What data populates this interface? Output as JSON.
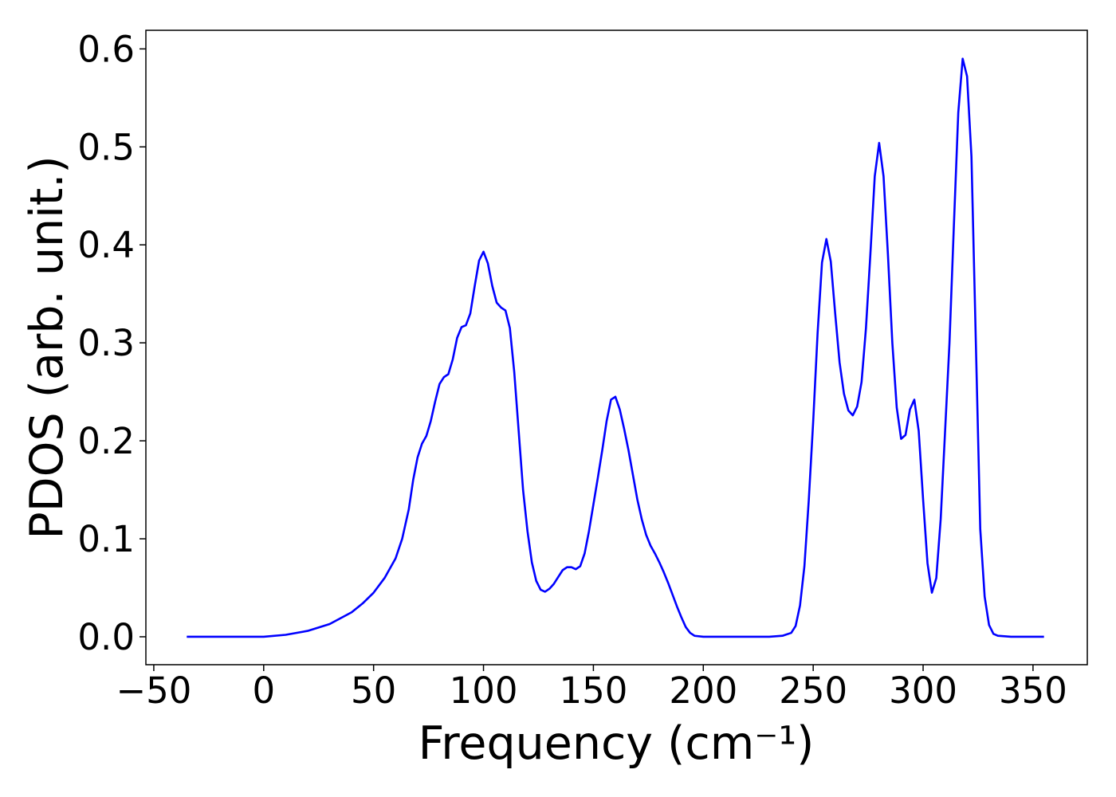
{
  "chart_data": {
    "type": "line",
    "xlabel": "Frequency (cm⁻¹)",
    "ylabel": "PDOS (arb. unit.)",
    "xlim": [
      -53.6,
      374.7
    ],
    "ylim": [
      -0.0285,
      0.619
    ],
    "xticks": [
      {
        "value": -50,
        "label": "−50"
      },
      0,
      50,
      100,
      150,
      200,
      250,
      300,
      350
    ],
    "yticks": [
      {
        "value": 0,
        "label": "0.0"
      },
      0.1,
      0.2,
      0.3,
      0.4,
      0.5,
      0.6
    ],
    "grid": false,
    "series": [
      {
        "color": "#0000ff",
        "x": [
          -35,
          0,
          10,
          20,
          30,
          40,
          45,
          50,
          55,
          60,
          63,
          66,
          68,
          70,
          72,
          74,
          76,
          78,
          80,
          82,
          84,
          86,
          88,
          90,
          92,
          94,
          96,
          98,
          100,
          102,
          104,
          106,
          108,
          110,
          112,
          114,
          116,
          118,
          120,
          122,
          124,
          126,
          128,
          130,
          132,
          134,
          136,
          138,
          140,
          142,
          144,
          146,
          148,
          150,
          152,
          154,
          156,
          158,
          160,
          162,
          164,
          166,
          168,
          170,
          172,
          174,
          176,
          178,
          180,
          182,
          184,
          186,
          188,
          190,
          192,
          194,
          196,
          200,
          230,
          236,
          240,
          242,
          244,
          246,
          248,
          250,
          252,
          254,
          256,
          258,
          260,
          262,
          264,
          266,
          268,
          270,
          272,
          274,
          276,
          278,
          280,
          282,
          284,
          286,
          288,
          290,
          292,
          294,
          296,
          298,
          300,
          302,
          304,
          306,
          308,
          310,
          312,
          314,
          316,
          318,
          320,
          322,
          324,
          326,
          328,
          330,
          332,
          334,
          340,
          355
        ],
        "values": [
          0,
          0,
          0.002,
          0.006,
          0.013,
          0.025,
          0.034,
          0.045,
          0.06,
          0.08,
          0.1,
          0.13,
          0.16,
          0.183,
          0.197,
          0.205,
          0.22,
          0.24,
          0.258,
          0.265,
          0.268,
          0.283,
          0.305,
          0.316,
          0.318,
          0.33,
          0.358,
          0.384,
          0.393,
          0.381,
          0.358,
          0.341,
          0.336,
          0.333,
          0.315,
          0.27,
          0.21,
          0.15,
          0.108,
          0.076,
          0.057,
          0.048,
          0.046,
          0.049,
          0.054,
          0.061,
          0.068,
          0.071,
          0.071,
          0.069,
          0.072,
          0.085,
          0.108,
          0.135,
          0.162,
          0.19,
          0.22,
          0.242,
          0.245,
          0.232,
          0.212,
          0.19,
          0.165,
          0.14,
          0.12,
          0.104,
          0.093,
          0.085,
          0.076,
          0.066,
          0.055,
          0.043,
          0.031,
          0.02,
          0.01,
          0.004,
          0.001,
          0,
          0,
          0.001,
          0.004,
          0.011,
          0.032,
          0.072,
          0.14,
          0.22,
          0.31,
          0.382,
          0.406,
          0.383,
          0.33,
          0.28,
          0.248,
          0.231,
          0.226,
          0.235,
          0.26,
          0.315,
          0.39,
          0.47,
          0.504,
          0.47,
          0.39,
          0.3,
          0.234,
          0.202,
          0.206,
          0.232,
          0.242,
          0.21,
          0.14,
          0.075,
          0.045,
          0.06,
          0.12,
          0.21,
          0.3,
          0.42,
          0.535,
          0.59,
          0.572,
          0.49,
          0.3,
          0.11,
          0.041,
          0.012,
          0.003,
          0.001,
          0,
          0
        ]
      }
    ]
  }
}
